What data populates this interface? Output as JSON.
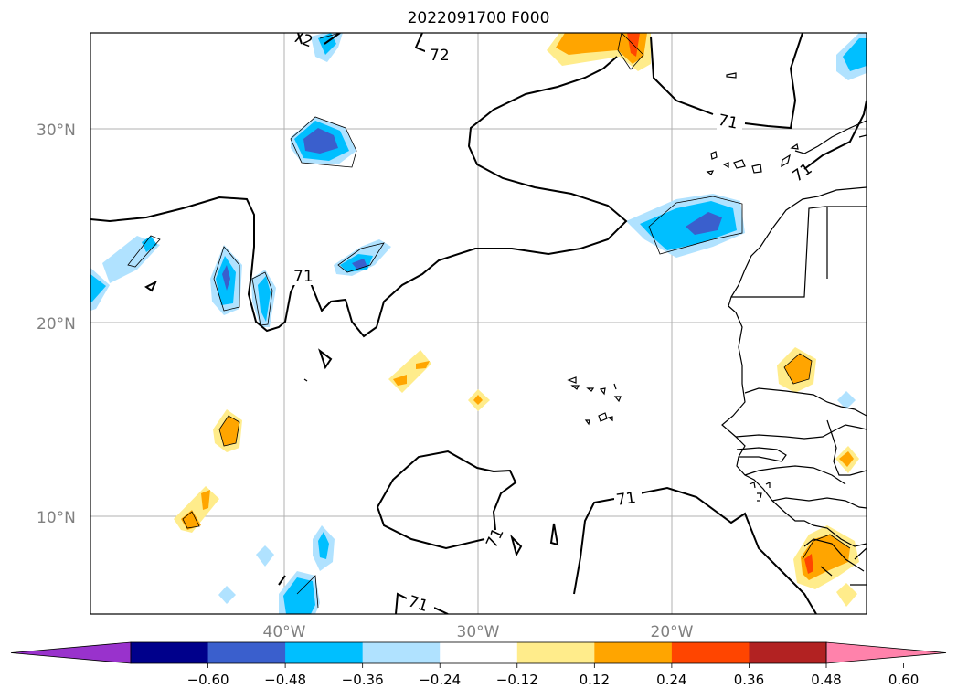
{
  "title": "2022091700 F000",
  "map": {
    "lat_labels": [
      "30°N",
      "20°N",
      "10°N"
    ],
    "lon_labels": [
      "40°W",
      "30°W",
      "20°W"
    ],
    "contour_labels": [
      "72",
      "72",
      "71",
      "71",
      "71",
      "71",
      "71",
      "71"
    ]
  },
  "colorbar": {
    "tick_labels": [
      "−0.60",
      "−0.48",
      "−0.36",
      "−0.24",
      "−0.12",
      "0.12",
      "0.24",
      "0.36",
      "0.48",
      "0.60"
    ],
    "colors": [
      "#9932cc",
      "#00008b",
      "#3a5fcd",
      "#00bfff",
      "#b0e2ff",
      "#ffffff",
      "#ffec8b",
      "#ffa500",
      "#ff4500",
      "#b22222",
      "#ff82ab"
    ]
  }
}
